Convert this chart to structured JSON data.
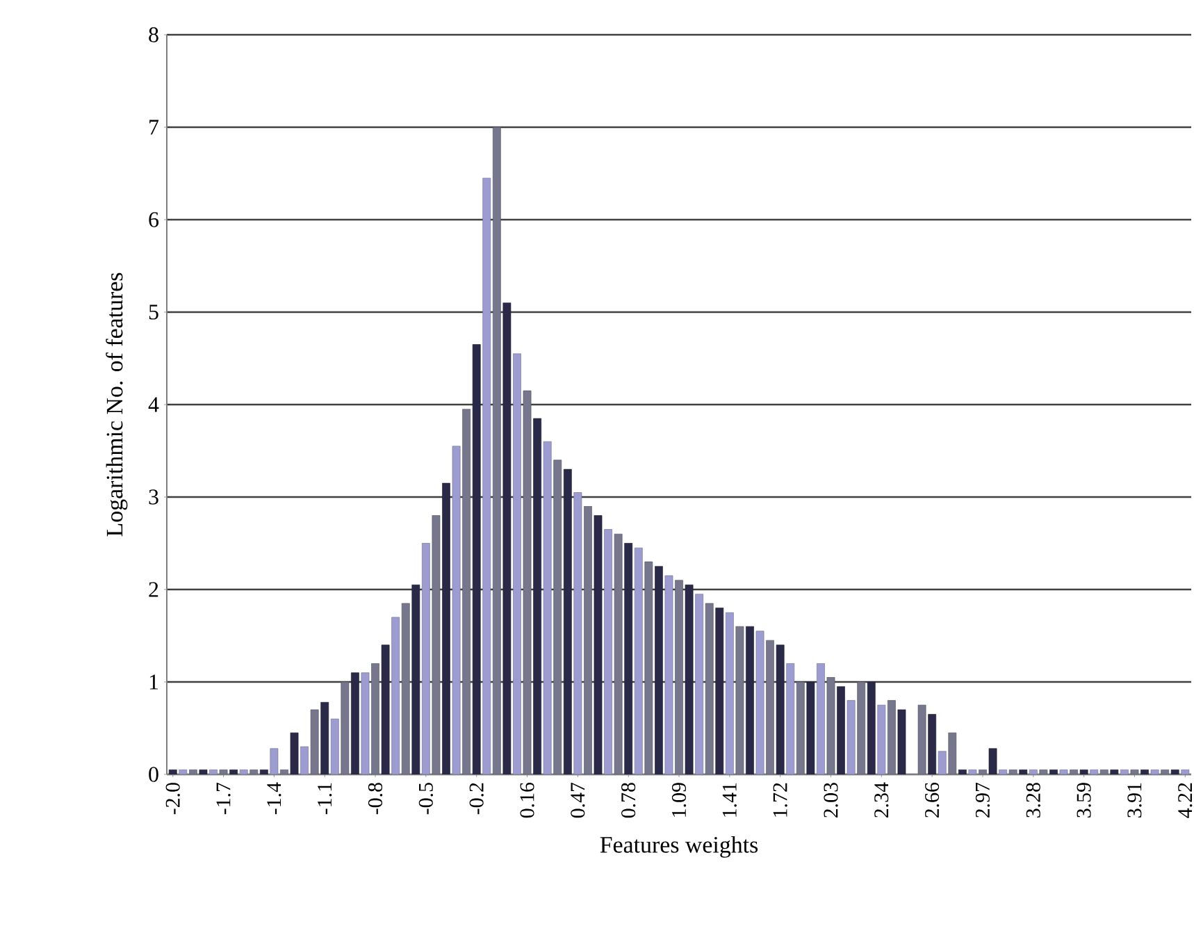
{
  "chart_data": {
    "type": "bar",
    "xlabel": "Features weights",
    "ylabel": "Logarithmic No. of  features",
    "categories": [
      "-2.0",
      null,
      null,
      null,
      null,
      "-1.7",
      null,
      null,
      null,
      null,
      "-1.4",
      null,
      null,
      null,
      null,
      "-1.1",
      null,
      null,
      null,
      null,
      "-0.8",
      null,
      null,
      null,
      null,
      "-0.5",
      null,
      null,
      null,
      null,
      "-0.2",
      null,
      null,
      null,
      null,
      "0.16",
      null,
      null,
      null,
      null,
      "0.47",
      null,
      null,
      null,
      null,
      "0.78",
      null,
      null,
      null,
      null,
      "1.09",
      null,
      null,
      null,
      null,
      "1.41",
      null,
      null,
      null,
      null,
      "1.72",
      null,
      null,
      null,
      null,
      "2.03",
      null,
      null,
      null,
      null,
      "2.34",
      null,
      null,
      null,
      null,
      "2.66",
      null,
      null,
      null,
      null,
      "2.97",
      null,
      null,
      null,
      null,
      "3.28",
      null,
      null,
      null,
      null,
      "3.59",
      null,
      null,
      null,
      null,
      "3.91",
      null,
      null,
      null,
      null,
      "4.22"
    ],
    "values": [
      0.05,
      0.05,
      0.05,
      0.05,
      0.05,
      0.05,
      0.05,
      0.05,
      0.05,
      0.05,
      0.28,
      0.05,
      0.45,
      0.3,
      0.7,
      0.78,
      0.6,
      1.0,
      1.1,
      1.1,
      1.2,
      1.4,
      1.7,
      1.85,
      2.05,
      2.5,
      2.8,
      3.15,
      3.55,
      3.95,
      4.65,
      6.45,
      7.0,
      5.1,
      4.55,
      4.15,
      3.85,
      3.6,
      3.4,
      3.3,
      3.05,
      2.9,
      2.8,
      2.65,
      2.6,
      2.5,
      2.45,
      2.3,
      2.25,
      2.15,
      2.1,
      2.05,
      1.95,
      1.85,
      1.8,
      1.75,
      1.6,
      1.6,
      1.55,
      1.45,
      1.4,
      1.2,
      1.0,
      1.0,
      1.2,
      1.05,
      0.95,
      0.8,
      1.0,
      1.0,
      0.75,
      0.8,
      0.7,
      0,
      0.75,
      0.65,
      0.25,
      0.45,
      0.05,
      0.05,
      0.05,
      0.28,
      0.05,
      0.05,
      0.05,
      0.05,
      0.05,
      0.05,
      0.05,
      0.05,
      0.05,
      0.05,
      0.05,
      0.05,
      0.05,
      0.05,
      0.05,
      0.05,
      0.05,
      0.05,
      0.05
    ],
    "colors": [
      "#2a2a48",
      "#9c9cd0",
      "#76768c",
      "#2a2a48",
      "#9c9cd0",
      "#76768c",
      "#2a2a48",
      "#9c9cd0",
      "#76768c",
      "#2a2a48",
      "#9c9cd0",
      "#76768c",
      "#2a2a48",
      "#9c9cd0",
      "#76768c",
      "#2a2a48",
      "#9c9cd0",
      "#76768c",
      "#2a2a48",
      "#9c9cd0",
      "#76768c",
      "#2a2a48",
      "#9c9cd0",
      "#76768c",
      "#2a2a48",
      "#9c9cd0",
      "#76768c",
      "#2a2a48",
      "#9c9cd0",
      "#76768c",
      "#2a2a48",
      "#9c9cd0",
      "#76768c",
      "#2a2a48",
      "#9c9cd0",
      "#76768c",
      "#2a2a48",
      "#9c9cd0",
      "#76768c",
      "#2a2a48",
      "#9c9cd0",
      "#76768c",
      "#2a2a48",
      "#9c9cd0",
      "#76768c",
      "#2a2a48",
      "#9c9cd0",
      "#76768c",
      "#2a2a48",
      "#9c9cd0",
      "#76768c",
      "#2a2a48",
      "#9c9cd0",
      "#76768c",
      "#2a2a48",
      "#9c9cd0",
      "#76768c",
      "#2a2a48",
      "#9c9cd0",
      "#76768c",
      "#2a2a48",
      "#9c9cd0",
      "#76768c",
      "#2a2a48",
      "#9c9cd0",
      "#76768c",
      "#2a2a48",
      "#9c9cd0",
      "#76768c",
      "#2a2a48",
      "#9c9cd0",
      "#76768c",
      "#2a2a48",
      "#9c9cd0",
      "#76768c",
      "#2a2a48",
      "#9c9cd0",
      "#76768c",
      "#2a2a48",
      "#9c9cd0",
      "#76768c",
      "#2a2a48",
      "#9c9cd0",
      "#76768c",
      "#2a2a48",
      "#9c9cd0",
      "#76768c",
      "#2a2a48",
      "#9c9cd0",
      "#76768c",
      "#2a2a48",
      "#9c9cd0",
      "#76768c",
      "#2a2a48",
      "#9c9cd0",
      "#76768c",
      "#2a2a48",
      "#9c9cd0",
      "#76768c",
      "#2a2a48",
      "#9c9cd0"
    ],
    "ylim": [
      0,
      8
    ],
    "yticks": [
      0,
      1,
      2,
      3,
      4,
      5,
      6,
      7,
      8
    ],
    "grid": "y"
  }
}
